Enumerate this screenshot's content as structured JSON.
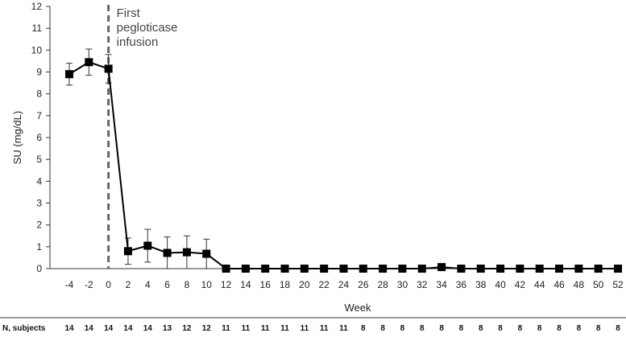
{
  "chart_data": {
    "type": "line",
    "xlabel": "Week",
    "ylabel": "SU (mg/dL)",
    "ylim": [
      0,
      12
    ],
    "yticks": [
      0,
      1,
      2,
      3,
      4,
      5,
      6,
      7,
      8,
      9,
      10,
      11,
      12
    ],
    "x": [
      -4,
      -2,
      0,
      2,
      4,
      6,
      8,
      10,
      12,
      14,
      16,
      18,
      20,
      22,
      24,
      26,
      28,
      30,
      32,
      34,
      36,
      38,
      40,
      42,
      44,
      46,
      48,
      50,
      52
    ],
    "series": [
      {
        "values": [
          8.9,
          9.45,
          9.15,
          0.8,
          1.05,
          0.72,
          0.75,
          0.68,
          0,
          0,
          0,
          0,
          0,
          0,
          0,
          0,
          0,
          0,
          0,
          0.07,
          0,
          0,
          0,
          0,
          0,
          0,
          0,
          0,
          0
        ],
        "error_upper": [
          9.4,
          10.05,
          9.8,
          1.4,
          1.8,
          1.45,
          1.5,
          1.35,
          0,
          0,
          0,
          0,
          0,
          0,
          0,
          0,
          0,
          0,
          0,
          0.1,
          0,
          0,
          0,
          0,
          0,
          0,
          0,
          0,
          0
        ],
        "error_lower": [
          8.4,
          8.85,
          8.5,
          0.2,
          0.3,
          0,
          0,
          0,
          0,
          0,
          0,
          0,
          0,
          0,
          0,
          0,
          0,
          0,
          0,
          0.04,
          0,
          0,
          0,
          0,
          0,
          0,
          0,
          0,
          0
        ],
        "color": "#000000",
        "marker": "square"
      }
    ],
    "annotation": {
      "lines": [
        "First",
        "pegloticase",
        "infusion"
      ],
      "at_x": 0,
      "line_style": "dashed",
      "line_color": "#666666"
    },
    "n_subjects": {
      "label": "N, subjects",
      "values": [
        14,
        14,
        14,
        14,
        14,
        13,
        12,
        12,
        11,
        11,
        11,
        11,
        11,
        11,
        11,
        8,
        8,
        8,
        8,
        8,
        8,
        8,
        8,
        8,
        8,
        8,
        8,
        8,
        8
      ]
    },
    "grid": false
  }
}
